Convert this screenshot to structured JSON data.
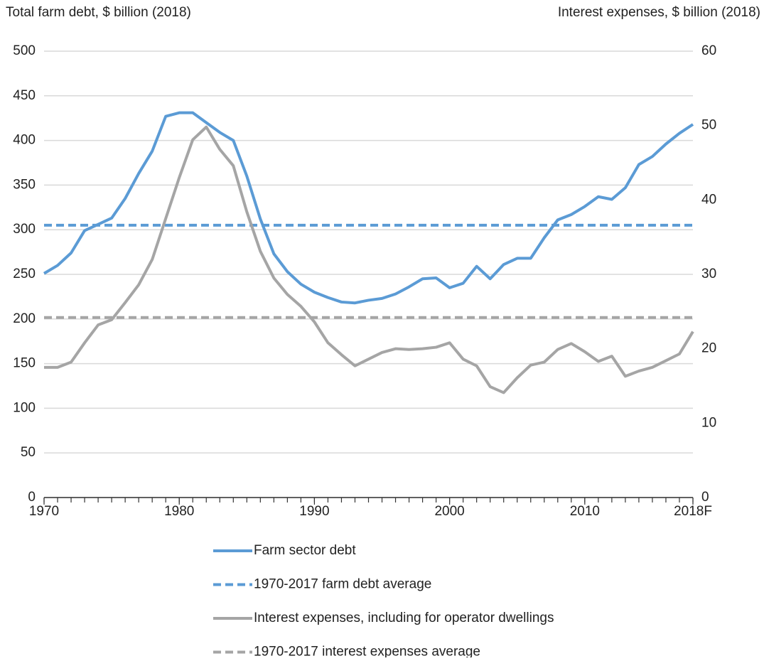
{
  "chart_data": {
    "type": "line",
    "y_label": "Total farm debt, $ billion (2018)",
    "y2_label": "Interest expenses, $ billion (2018)",
    "x": [
      1970,
      1971,
      1972,
      1973,
      1974,
      1975,
      1976,
      1977,
      1978,
      1979,
      1980,
      1981,
      1982,
      1983,
      1984,
      1985,
      1986,
      1987,
      1988,
      1989,
      1990,
      1991,
      1992,
      1993,
      1994,
      1995,
      1996,
      1997,
      1998,
      1999,
      2000,
      2001,
      2002,
      2003,
      2004,
      2005,
      2006,
      2007,
      2008,
      2009,
      2010,
      2011,
      2012,
      2013,
      2014,
      2015,
      2016,
      2017,
      2018
    ],
    "xlim": [
      1970,
      2018
    ],
    "xticks": [
      1970,
      1980,
      1990,
      2000,
      2010,
      {
        "value": 2018,
        "label": "2018F"
      }
    ],
    "ylim": [
      0,
      500
    ],
    "yticks": [
      0,
      50,
      100,
      150,
      200,
      250,
      300,
      350,
      400,
      450,
      500
    ],
    "y2lim": [
      0,
      60
    ],
    "y2ticks": [
      0,
      10,
      20,
      30,
      40,
      50,
      60
    ],
    "grid": true,
    "series": [
      {
        "name": "Farm sector debt",
        "color": "#5b9bd5",
        "dashed": false,
        "values": [
          251,
          260,
          274,
          299,
          306,
          313,
          335,
          363,
          388,
          427,
          431,
          431,
          420,
          409,
          400,
          360,
          312,
          273,
          253,
          239,
          230,
          224,
          219,
          218,
          221,
          223,
          228,
          236,
          245,
          246,
          235,
          240,
          259,
          245,
          261,
          268,
          268,
          291,
          311,
          317,
          326,
          337,
          334,
          347,
          373,
          382,
          396,
          408,
          418
        ]
      },
      {
        "name": "1970-2017 farm debt average",
        "color": "#5b9bd5",
        "dashed": true,
        "value": 305
      },
      {
        "name": "Interest expenses, including for operator dwellings",
        "color": "#a5a5a5",
        "dashed": false,
        "axis": "y2",
        "values": [
          17.5,
          17.5,
          18.2,
          20.8,
          23.2,
          23.9,
          26.2,
          28.6,
          32,
          37.5,
          43,
          48.1,
          49.8,
          46.8,
          44.6,
          38.4,
          33.1,
          29.5,
          27.3,
          25.7,
          23.6,
          20.8,
          19.2,
          17.7,
          18.6,
          19.5,
          20,
          19.9,
          20,
          20.2,
          20.8,
          18.6,
          17.7,
          14.9,
          14.1,
          16.1,
          17.8,
          18.2,
          19.9,
          20.7,
          19.6,
          18.3,
          19,
          16.3,
          17,
          17.5,
          18.4,
          19.3,
          22.3
        ]
      },
      {
        "name": "1970-2017 interest expenses average",
        "color": "#a5a5a5",
        "dashed": true,
        "axis": "y2",
        "value": 24.2
      }
    ]
  }
}
